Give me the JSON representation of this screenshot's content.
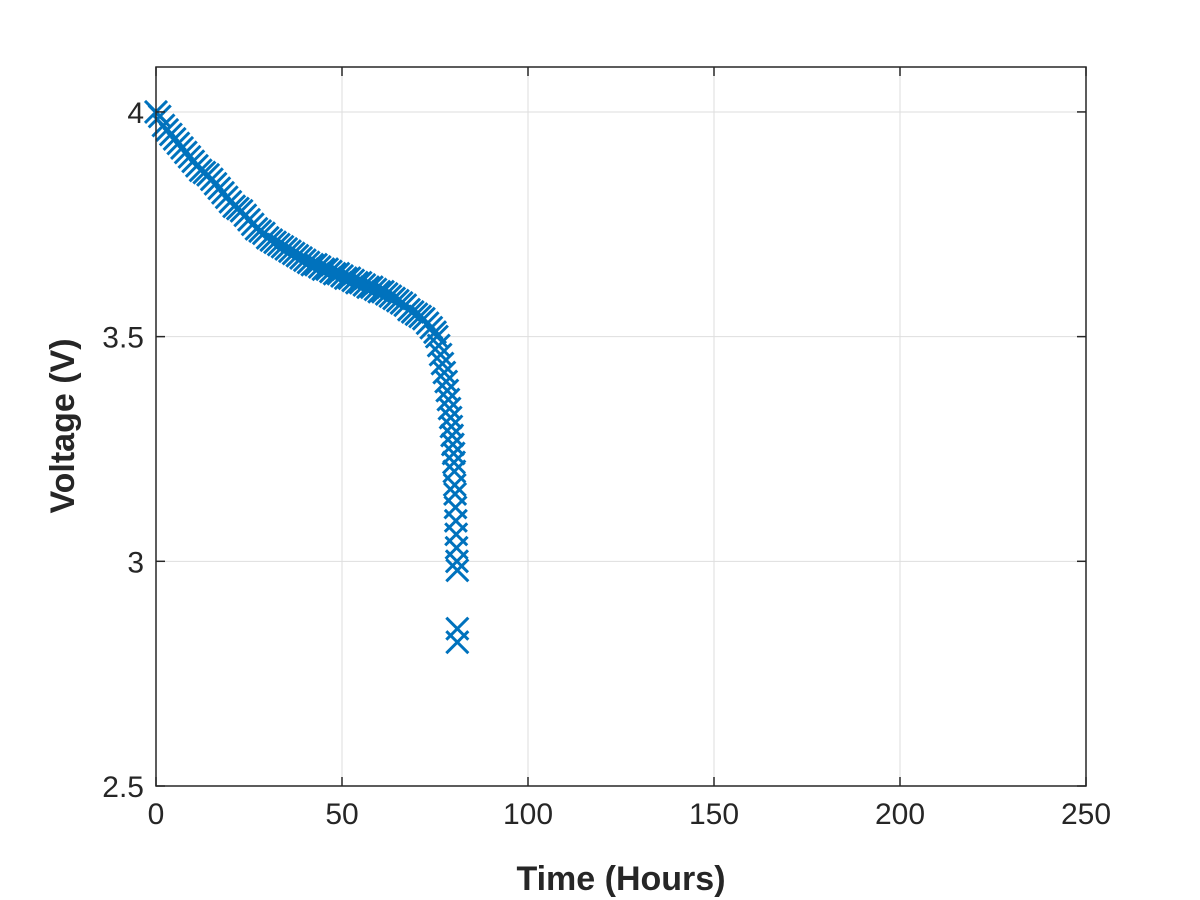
{
  "chart_data": {
    "type": "scatter",
    "title": "",
    "xlabel": "Time (Hours)",
    "ylabel": "Voltage (V)",
    "xlim": [
      0,
      250
    ],
    "ylim": [
      2.5,
      4.1
    ],
    "xticks": [
      0,
      50,
      100,
      150,
      200,
      250
    ],
    "xtick_labels": [
      "0",
      "50",
      "100",
      "150",
      "200",
      "250"
    ],
    "yticks": [
      2.5,
      3,
      3.5,
      4
    ],
    "ytick_labels": [
      "2.5",
      "3",
      "3.5",
      "4"
    ],
    "grid": true,
    "marker": "x",
    "color": "#0072BD",
    "series": [
      {
        "x": [
          0,
          1,
          2,
          3,
          4,
          5,
          6,
          7,
          8,
          9,
          10,
          11,
          12,
          13,
          14,
          15,
          16,
          17,
          18,
          19,
          20,
          21,
          22,
          23,
          24,
          25,
          26,
          27,
          28,
          29,
          30,
          31,
          32,
          33,
          34,
          35,
          36,
          37,
          38,
          39,
          40,
          41,
          42,
          43,
          44,
          45,
          46,
          47,
          48,
          49,
          50,
          51,
          52,
          53,
          54,
          55,
          56,
          57,
          58,
          59,
          60,
          61,
          62,
          63,
          64,
          65,
          66,
          67,
          68,
          69,
          70,
          71,
          72,
          73,
          74,
          75,
          75.5,
          76,
          76.5,
          77,
          77.5,
          78,
          78.3,
          78.6,
          78.9,
          79.2,
          79.4,
          79.6,
          79.8,
          80,
          80.1,
          80.2,
          80.3,
          80.4,
          80.5,
          80.6,
          80.7,
          80.8,
          80.9,
          81,
          81,
          81
        ],
        "y": [
          4.0,
          3.99,
          3.97,
          3.96,
          3.95,
          3.94,
          3.93,
          3.92,
          3.91,
          3.9,
          3.89,
          3.88,
          3.87,
          3.865,
          3.86,
          3.85,
          3.84,
          3.83,
          3.82,
          3.81,
          3.8,
          3.79,
          3.785,
          3.78,
          3.77,
          3.76,
          3.75,
          3.74,
          3.735,
          3.73,
          3.72,
          3.715,
          3.71,
          3.705,
          3.7,
          3.695,
          3.69,
          3.685,
          3.68,
          3.675,
          3.67,
          3.665,
          3.66,
          3.66,
          3.655,
          3.65,
          3.65,
          3.645,
          3.64,
          3.64,
          3.635,
          3.63,
          3.63,
          3.625,
          3.62,
          3.62,
          3.615,
          3.61,
          3.61,
          3.605,
          3.6,
          3.6,
          3.595,
          3.59,
          3.585,
          3.58,
          3.575,
          3.57,
          3.56,
          3.555,
          3.55,
          3.545,
          3.54,
          3.53,
          3.52,
          3.51,
          3.5,
          3.48,
          3.46,
          3.44,
          3.42,
          3.4,
          3.38,
          3.36,
          3.34,
          3.32,
          3.3,
          3.28,
          3.26,
          3.24,
          3.22,
          3.2,
          3.17,
          3.15,
          3.12,
          3.09,
          3.06,
          3.03,
          3.0,
          2.98,
          2.85,
          2.82
        ]
      }
    ]
  }
}
